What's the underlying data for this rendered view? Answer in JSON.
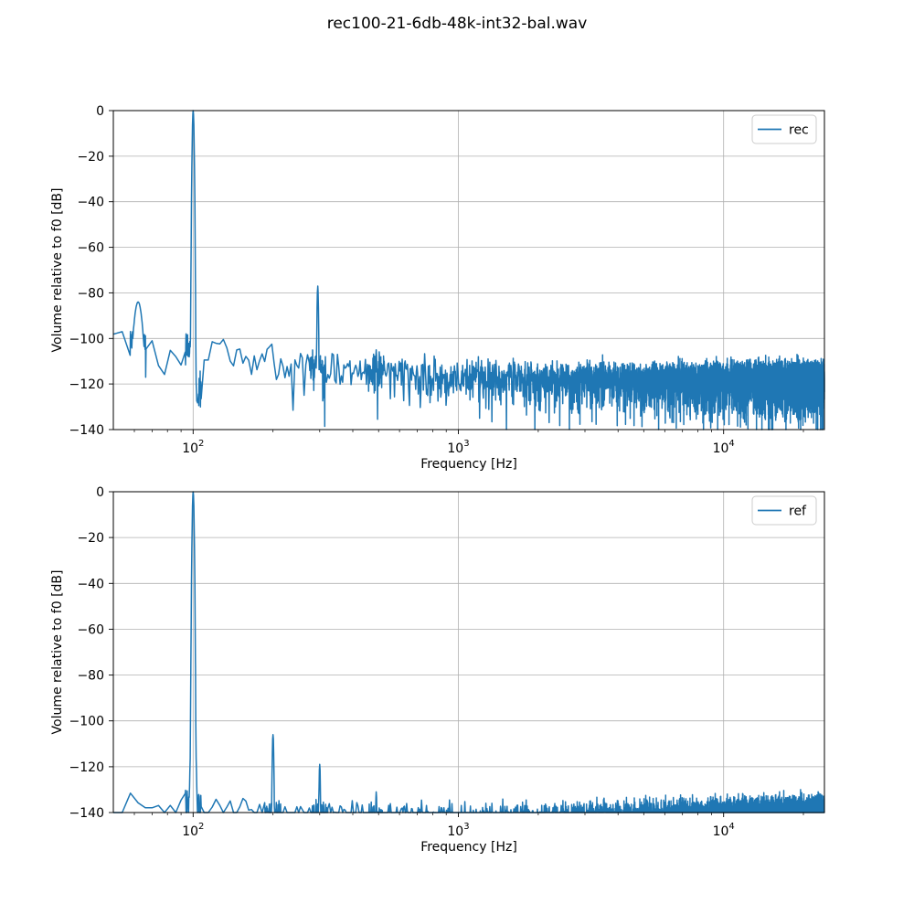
{
  "figure": {
    "title": "rec100-21-6db-48k-int32-bal.wav",
    "background_color": "#ffffff",
    "line_color": "#1f77b4",
    "grid_color": "#b0b0b0",
    "spine_color": "#000000",
    "legend_border_color": "#cccccc"
  },
  "chart_data": [
    {
      "type": "line",
      "series_label": "rec",
      "xlabel": "Frequency [Hz]",
      "ylabel": "Volume relative to f0 [dB]",
      "xscale": "log",
      "xlim": [
        50,
        24000
      ],
      "ylim": [
        -140,
        0
      ],
      "grid": true,
      "legend_position": "upper right",
      "y_tick_values": [
        0,
        -20,
        -40,
        -60,
        -80,
        -100,
        -120,
        -140
      ],
      "y_tick_labels": [
        "0",
        "−20",
        "−40",
        "−60",
        "−80",
        "−100",
        "−120",
        "−140"
      ],
      "x_major_ticks": [
        {
          "value": 100,
          "label_base": "10",
          "label_exp": "2"
        },
        {
          "value": 1000,
          "label_base": "10",
          "label_exp": "3"
        },
        {
          "value": 10000,
          "label_base": "10",
          "label_exp": "4"
        }
      ],
      "peaks": [
        {
          "freq_hz": 62,
          "db": -84,
          "width_log10": 0.05
        },
        {
          "freq_hz": 100,
          "db": 0,
          "width_log10": 0.01
        },
        {
          "freq_hz": 295,
          "db": -77,
          "width_log10": 0.008
        },
        {
          "freq_hz": 490,
          "db": -105,
          "width_log10": 0.008
        }
      ],
      "noise_floor_db_by_hz": [
        [
          50,
          -100.5
        ],
        [
          70,
          -102
        ],
        [
          80,
          -100.5
        ],
        [
          90,
          -102.5
        ],
        [
          100,
          -102.5
        ],
        [
          104,
          -124
        ],
        [
          110,
          -106
        ],
        [
          125,
          -104
        ],
        [
          140,
          -107
        ],
        [
          160,
          -106
        ],
        [
          200,
          -108.5
        ],
        [
          250,
          -110
        ],
        [
          350,
          -112
        ],
        [
          500,
          -113.5
        ],
        [
          700,
          -114.5
        ],
        [
          1000,
          -115.5
        ],
        [
          2000,
          -116.5
        ],
        [
          5000,
          -117
        ],
        [
          24000,
          -116.5
        ]
      ]
    },
    {
      "type": "line",
      "series_label": "ref",
      "xlabel": "Frequency [Hz]",
      "ylabel": "Volume relative to f0 [dB]",
      "xscale": "log",
      "xlim": [
        50,
        24000
      ],
      "ylim": [
        -140,
        0
      ],
      "grid": true,
      "legend_position": "upper right",
      "y_tick_values": [
        0,
        -20,
        -40,
        -60,
        -80,
        -100,
        -120,
        -140
      ],
      "y_tick_labels": [
        "0",
        "−20",
        "−40",
        "−60",
        "−80",
        "−100",
        "−120",
        "−140"
      ],
      "x_major_ticks": [
        {
          "value": 100,
          "label_base": "10",
          "label_exp": "2"
        },
        {
          "value": 1000,
          "label_base": "10",
          "label_exp": "3"
        },
        {
          "value": 10000,
          "label_base": "10",
          "label_exp": "4"
        }
      ],
      "peaks": [
        {
          "freq_hz": 100,
          "db": 0,
          "width_log10": 0.01,
          "pedestal": {
            "db": -60,
            "slope_db_per_decade": 5000
          }
        },
        {
          "freq_hz": 200,
          "db": -106,
          "width_log10": 0.009
        },
        {
          "freq_hz": 300,
          "db": -119,
          "width_log10": 0.008
        },
        {
          "freq_hz": 490,
          "db": -131,
          "width_log10": 0.008
        }
      ],
      "noise_floor_db_by_hz": [
        [
          50,
          -142
        ],
        [
          55,
          -137
        ],
        [
          62,
          -136
        ],
        [
          68,
          -140
        ],
        [
          75,
          -137.5
        ],
        [
          85,
          -139
        ],
        [
          95,
          -136.5
        ],
        [
          110,
          -137
        ],
        [
          130,
          -138.5
        ],
        [
          160,
          -138
        ],
        [
          200,
          -140.5
        ],
        [
          300,
          -140
        ],
        [
          400,
          -141.5
        ],
        [
          700,
          -141
        ],
        [
          1000,
          -142
        ],
        [
          2000,
          -141.5
        ],
        [
          5000,
          -141
        ],
        [
          10000,
          -140
        ],
        [
          16000,
          -139.5
        ],
        [
          24000,
          -138.5
        ]
      ]
    }
  ]
}
